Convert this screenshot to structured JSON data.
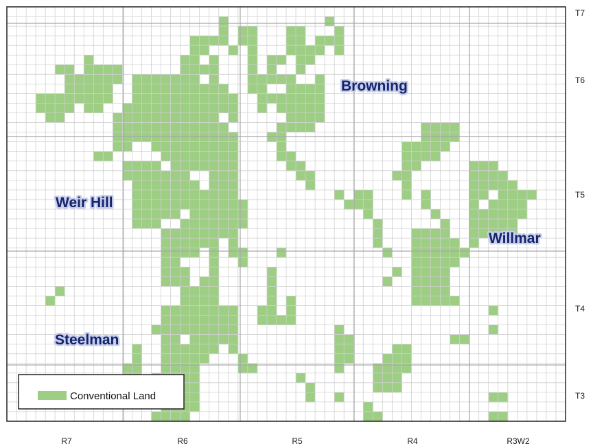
{
  "colors": {
    "land": "#9dce84",
    "grid_minor": "#d0d0d0",
    "grid_major": "#a8a8a8",
    "frame": "#222222",
    "label": "#14246b",
    "label_glow": "#c8ceec"
  },
  "map": {
    "township_labels": [
      "T7",
      "T6",
      "T5",
      "T4",
      "T3"
    ],
    "range_labels": [
      "R7",
      "R6",
      "R5",
      "R4",
      "R3W2"
    ],
    "region_labels": [
      "Browning",
      "Weir Hill",
      "Willmar",
      "Steelman"
    ]
  },
  "legend": {
    "label": "Conventional Land"
  }
}
